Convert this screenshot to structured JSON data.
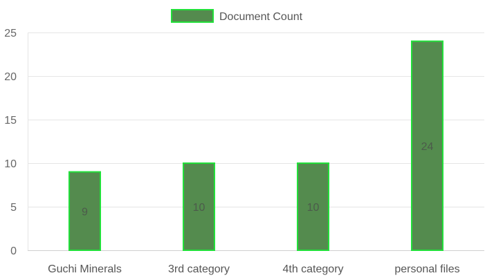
{
  "chart_data": {
    "type": "bar",
    "categories": [
      "Guchi Minerals",
      "3rd category",
      "4th category",
      "personal files"
    ],
    "series": [
      {
        "name": "Document Count",
        "values": [
          9,
          10,
          10,
          24
        ]
      }
    ],
    "ylim": [
      0,
      25
    ],
    "yticks": [
      0,
      5,
      10,
      15,
      20,
      25
    ],
    "grid": true,
    "legend_position": "top-center",
    "colors": {
      "bar_fill": "#548b4e",
      "bar_border": "#22e03a"
    },
    "data_labels": [
      "9",
      "10",
      "10",
      "24"
    ]
  }
}
